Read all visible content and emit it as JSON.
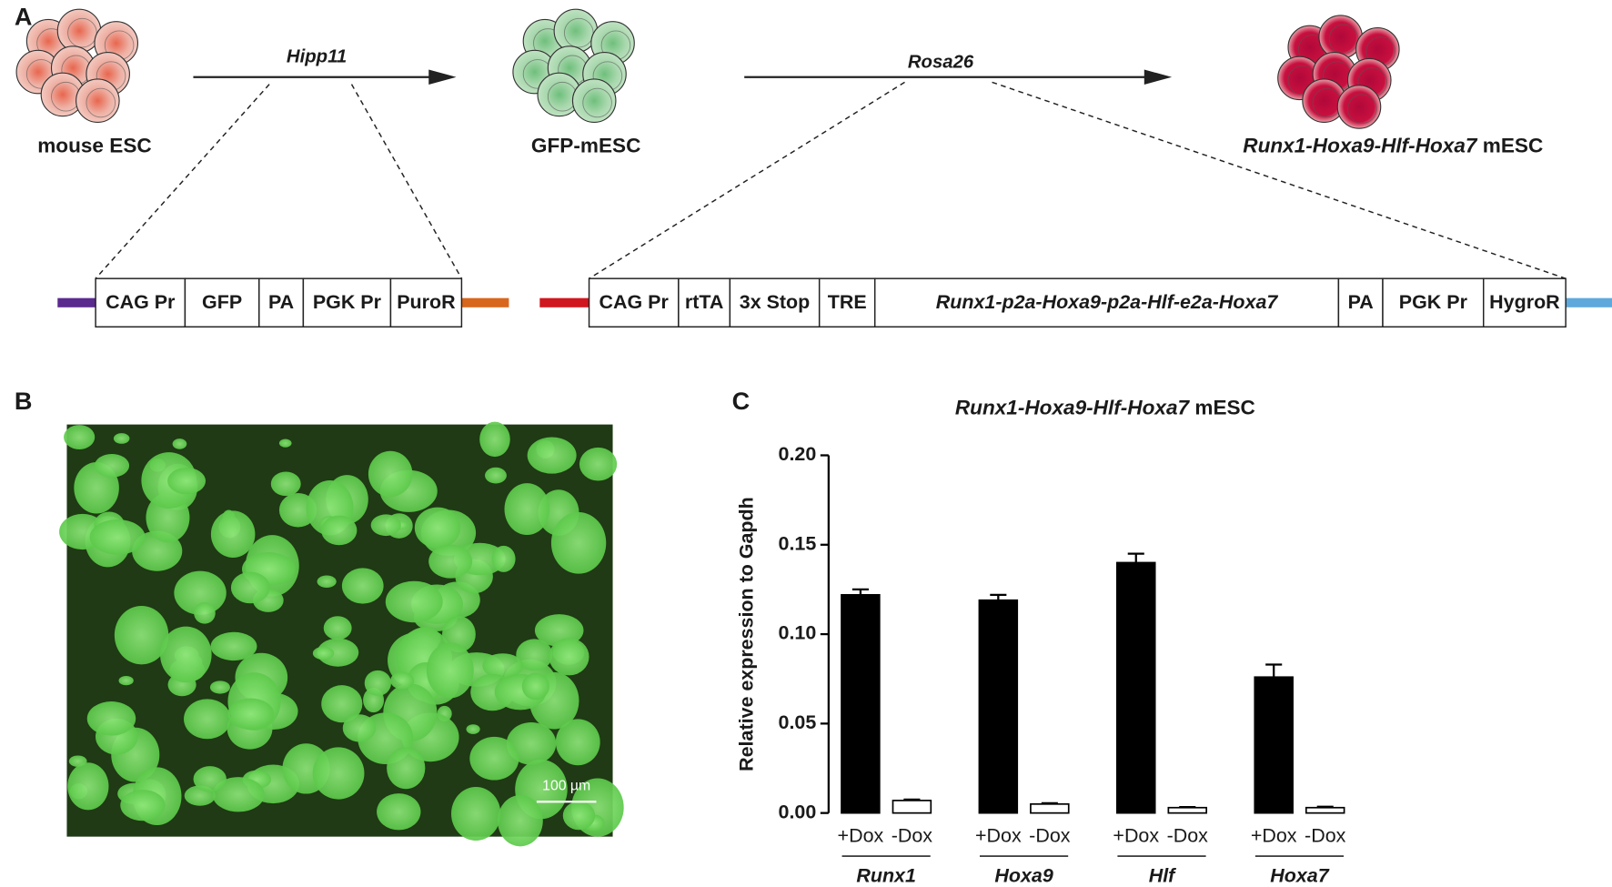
{
  "panel_labels": {
    "a": "A",
    "b": "B",
    "c": "C"
  },
  "diagram": {
    "cells": [
      {
        "label": "mouse ESC"
      },
      {
        "label": "GFP-mESC"
      },
      {
        "label_italic": "Runx1-Hoxa9-Hlf-Hoxa7",
        "label_rest": "mESC"
      }
    ],
    "arrows": [
      {
        "label": "Hipp11"
      },
      {
        "label": "Rosa26"
      }
    ],
    "construct_1": [
      "CAG Pr",
      "GFP",
      "PA",
      "PGK Pr",
      "PuroR"
    ],
    "construct_2": [
      "CAG Pr",
      "rtTA",
      "3x Stop",
      "TRE",
      "Runx1-p2a-Hoxa9-p2a-Hlf-e2a-Hoxa7",
      "PA",
      "PGK Pr",
      "HygroR"
    ]
  },
  "image": {
    "scale_bar": "100 µm"
  },
  "chart_data": {
    "type": "bar",
    "title_italic": "Runx1-Hoxa9-Hlf-Hoxa7",
    "title_rest": "mESC",
    "ylabel": "Relative expression to Gapdh",
    "groups": [
      "Runx1",
      "Hoxa9",
      "Hlf",
      "Hoxa7"
    ],
    "series": [
      {
        "name": "+Dox",
        "color": "#000000",
        "values": [
          0.122,
          0.119,
          0.14,
          0.076
        ],
        "errors": [
          0.003,
          0.003,
          0.005,
          0.007
        ]
      },
      {
        "name": "-Dox",
        "color": "#ffffff",
        "values": [
          0.007,
          0.005,
          0.003,
          0.003
        ],
        "errors": [
          0.0005,
          0.0005,
          0.0003,
          0.0005
        ]
      }
    ],
    "ylim": [
      0,
      0.2
    ],
    "yticks": [
      {
        "value": 0,
        "label": "0.00"
      },
      {
        "value": 0.05,
        "label": "0.05"
      },
      {
        "value": 0.1,
        "label": "0.10"
      },
      {
        "value": 0.15,
        "label": "0.15"
      },
      {
        "value": 0.2,
        "label": "0.20"
      }
    ]
  }
}
